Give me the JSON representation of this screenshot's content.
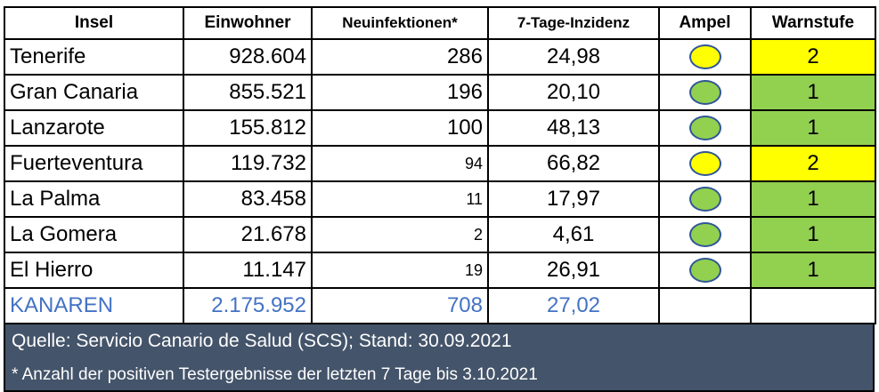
{
  "colors": {
    "yellow": "#ffff00",
    "green": "#92d050",
    "total_text": "#4472c4",
    "footer_bg": "#44546a",
    "dot_border": "#2f5596"
  },
  "headers": {
    "insel": "Insel",
    "einwohner": "Einwohner",
    "neuinfektionen": "Neuinfektionen*",
    "inzidenz": "7-Tage-Inzidenz",
    "ampel": "Ampel",
    "warnstufe": "Warnstufe"
  },
  "rows": [
    {
      "insel": "Tenerife",
      "einwohner": "928.604",
      "neuinfektionen": "286",
      "inzidenz": "24,98",
      "ampel": "yellow",
      "warnstufe": "2"
    },
    {
      "insel": "Gran Canaria",
      "einwohner": "855.521",
      "neuinfektionen": "196",
      "inzidenz": "20,10",
      "ampel": "green",
      "warnstufe": "1"
    },
    {
      "insel": "Lanzarote",
      "einwohner": "155.812",
      "neuinfektionen": "100",
      "inzidenz": "48,13",
      "ampel": "green",
      "warnstufe": "1"
    },
    {
      "insel": "Fuerteventura",
      "einwohner": "119.732",
      "neuinfektionen": "94",
      "inzidenz": "66,82",
      "ampel": "yellow",
      "warnstufe": "2"
    },
    {
      "insel": "La Palma",
      "einwohner": "83.458",
      "neuinfektionen": "11",
      "inzidenz": "17,97",
      "ampel": "green",
      "warnstufe": "1"
    },
    {
      "insel": "La Gomera",
      "einwohner": "21.678",
      "neuinfektionen": "2",
      "inzidenz": "4,61",
      "ampel": "green",
      "warnstufe": "1"
    },
    {
      "insel": "El Hierro",
      "einwohner": "11.147",
      "neuinfektionen": "19",
      "inzidenz": "26,91",
      "ampel": "green",
      "warnstufe": "1"
    }
  ],
  "total": {
    "insel": "KANAREN",
    "einwohner": "2.175.952",
    "neuinfektionen": "708",
    "inzidenz": "27,02"
  },
  "footer": {
    "quelle": "Quelle: Servicio Canario de Salud (SCS); Stand: 30.09.2021",
    "note": "* Anzahl der positiven Testergebnisse der letzten 7 Tage bis 3.10.2021"
  }
}
